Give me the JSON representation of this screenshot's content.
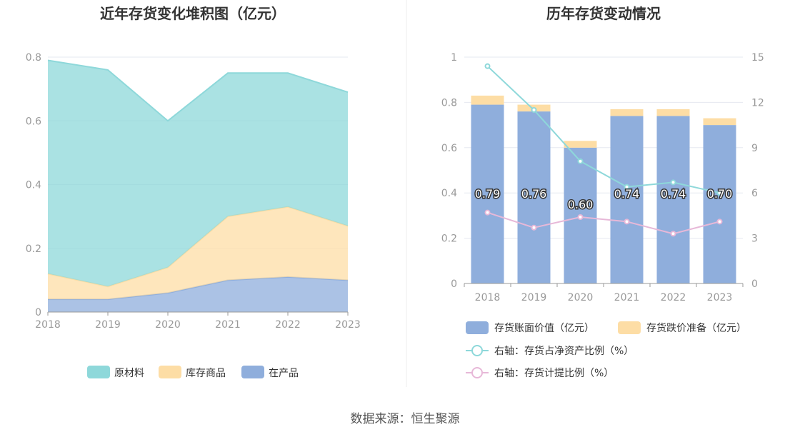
{
  "source": "数据来源：恒生聚源",
  "chart_data": [
    {
      "type": "area",
      "stacked": true,
      "title": "近年存货变化堆积图（亿元）",
      "categories": [
        "2018",
        "2019",
        "2020",
        "2021",
        "2022",
        "2023"
      ],
      "ylim": [
        0,
        0.8
      ],
      "yticks": [
        "0",
        "0.2",
        "0.4",
        "0.6",
        "0.8"
      ],
      "grid": true,
      "legend_position": "bottom",
      "series": [
        {
          "name": "在产品",
          "color": "#8FAEDC",
          "values": [
            0.04,
            0.04,
            0.06,
            0.1,
            0.11,
            0.1
          ]
        },
        {
          "name": "库存商品",
          "color": "#FDDDA5",
          "values": [
            0.08,
            0.04,
            0.08,
            0.2,
            0.22,
            0.17
          ]
        },
        {
          "name": "原材料",
          "color": "#8ED8DA",
          "values": [
            0.67,
            0.68,
            0.46,
            0.45,
            0.42,
            0.42
          ]
        }
      ],
      "legend_order": [
        "原材料",
        "库存商品",
        "在产品"
      ]
    },
    {
      "type": "bar",
      "stacked": true,
      "title": "历年存货变动情况",
      "categories": [
        "2018",
        "2019",
        "2020",
        "2021",
        "2022",
        "2023"
      ],
      "ylim_left": [
        0,
        1
      ],
      "yticks_left": [
        "0",
        "0.2",
        "0.4",
        "0.6",
        "0.8",
        "1"
      ],
      "ylim_right": [
        0,
        15
      ],
      "yticks_right": [
        "0",
        "3",
        "6",
        "9",
        "12",
        "15"
      ],
      "grid": true,
      "legend_position": "bottom",
      "bar_series": [
        {
          "name": "存货账面价值（亿元）",
          "color": "#8FAEDC",
          "values": [
            0.79,
            0.76,
            0.6,
            0.74,
            0.74,
            0.7
          ],
          "labels": [
            "0.79",
            "0.76",
            "0.60",
            "0.74",
            "0.74",
            "0.70"
          ]
        },
        {
          "name": "存货跌价准备（亿元）",
          "color": "#FDDDA5",
          "values": [
            0.04,
            0.03,
            0.03,
            0.03,
            0.03,
            0.03
          ]
        }
      ],
      "line_series": [
        {
          "name": "右轴：存货占净资产比例（%）",
          "color": "#8ED8DA",
          "axis": "right",
          "values": [
            14.4,
            11.5,
            8.1,
            6.4,
            6.7,
            6.0
          ]
        },
        {
          "name": "右轴：存货计提比例（%）",
          "color": "#E7B8D8",
          "axis": "right",
          "values": [
            4.7,
            3.7,
            4.4,
            4.1,
            3.3,
            4.1
          ]
        }
      ]
    }
  ]
}
